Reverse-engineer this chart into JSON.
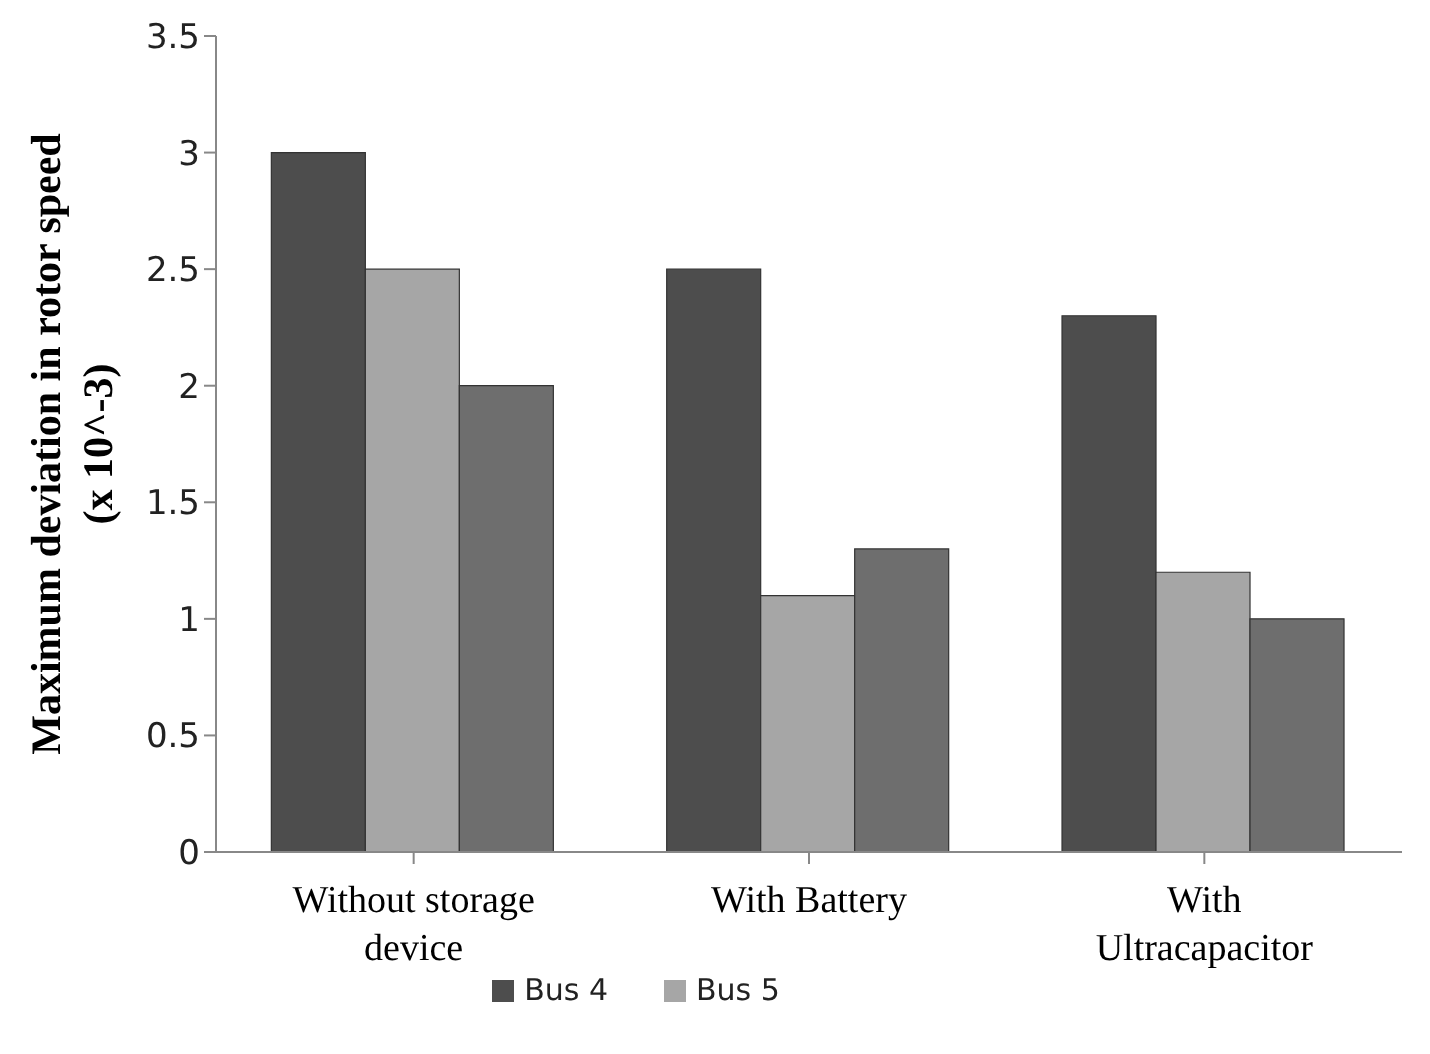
{
  "chart_data": {
    "type": "bar",
    "ylabel": "Maximum deviation in rotor speed (x 10^-3)",
    "categories": [
      "Without storage device",
      "With Battery",
      "With Ultracapacitor"
    ],
    "series": [
      {
        "name": "Bus 4",
        "color": "#4d4d4d",
        "values": [
          3,
          2.5,
          2.3
        ]
      },
      {
        "name": "Bus 5",
        "color": "#a6a6a6",
        "values": [
          2.5,
          1.1,
          1.2
        ]
      },
      {
        "color": "#6e6e6e",
        "values": [
          2,
          1.3,
          1
        ]
      }
    ],
    "ylim": [
      0,
      3.5
    ],
    "yticks": [
      0,
      0.5,
      1,
      1.5,
      2,
      2.5,
      3,
      3.5
    ],
    "grid": false,
    "legend": "bottom"
  }
}
